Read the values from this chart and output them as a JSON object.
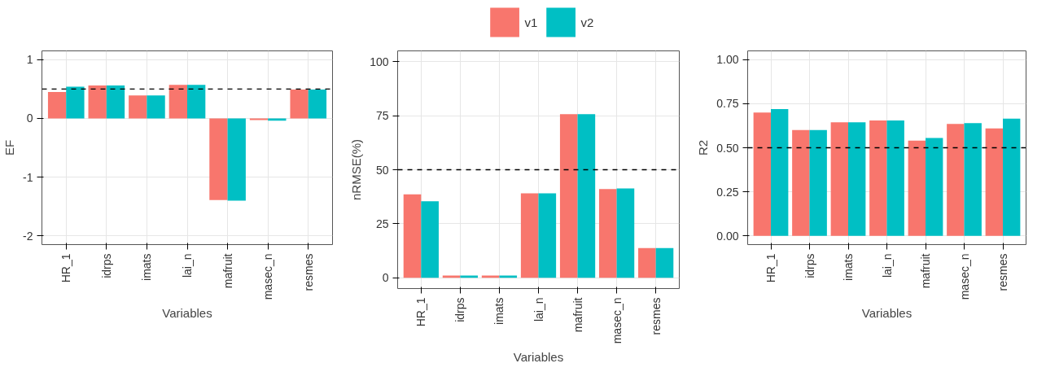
{
  "chart_data": [
    {
      "type": "bar",
      "xlabel": "Variables",
      "ylabel": "EF",
      "categories": [
        "HR_1",
        "idrps",
        "imats",
        "lai_n",
        "mafruit",
        "masec_n",
        "resmes"
      ],
      "series": [
        {
          "color": "#f8766d",
          "values": [
            0.45,
            0.56,
            0.39,
            0.57,
            -1.39,
            -0.03,
            0.49
          ]
        },
        {
          "color": "#00bfc4",
          "values": [
            0.54,
            0.56,
            0.39,
            0.57,
            -1.4,
            -0.04,
            0.49
          ]
        }
      ],
      "ylim": [
        -2.15,
        1.15
      ],
      "yticks": [
        -2,
        -1,
        0,
        1
      ],
      "grid": true,
      "legend": false,
      "ref_lines": [
        {
          "axis": "y",
          "value": 0.5,
          "line_style": "dashed"
        }
      ]
    },
    {
      "type": "bar",
      "xlabel": "Variables",
      "ylabel": "nRMSE(%)",
      "categories": [
        "HR_1",
        "idrps",
        "imats",
        "lai_n",
        "mafruit",
        "masec_n",
        "resmes"
      ],
      "series": [
        {
          "name": "v1",
          "color": "#f8766d",
          "values": [
            38.6,
            1,
            1,
            39.1,
            75.7,
            41.1,
            13.7
          ]
        },
        {
          "name": "v2",
          "color": "#00bfc4",
          "values": [
            35.4,
            1,
            1,
            39.1,
            75.7,
            41.3,
            13.7
          ]
        }
      ],
      "ylim": [
        -5,
        105
      ],
      "yticks": [
        0,
        25,
        50,
        75,
        100
      ],
      "grid": true,
      "legend": "top",
      "ref_lines": [
        {
          "axis": "y",
          "value": 50,
          "line_style": "dashed"
        }
      ]
    },
    {
      "type": "bar",
      "xlabel": "Variables",
      "ylabel": "R2",
      "categories": [
        "HR_1",
        "idrps",
        "imats",
        "lai_n",
        "mafruit",
        "masec_n",
        "resmes"
      ],
      "series": [
        {
          "color": "#f8766d",
          "values": [
            0.7,
            0.6,
            0.645,
            0.655,
            0.54,
            0.635,
            0.61
          ]
        },
        {
          "color": "#00bfc4",
          "values": [
            0.72,
            0.6,
            0.645,
            0.655,
            0.555,
            0.64,
            0.665
          ]
        }
      ],
      "ylim": [
        -0.05,
        1.05
      ],
      "yticks": [
        {
          "value": 0,
          "label": "0.00"
        },
        {
          "value": 0.25,
          "label": "0.25"
        },
        {
          "value": 0.5,
          "label": "0.50"
        },
        {
          "value": 0.75,
          "label": "0.75"
        },
        {
          "value": 1,
          "label": "1.00"
        }
      ],
      "grid": true,
      "legend": false,
      "ref_lines": [
        {
          "axis": "y",
          "value": 0.5,
          "line_style": "dashed"
        }
      ]
    }
  ]
}
